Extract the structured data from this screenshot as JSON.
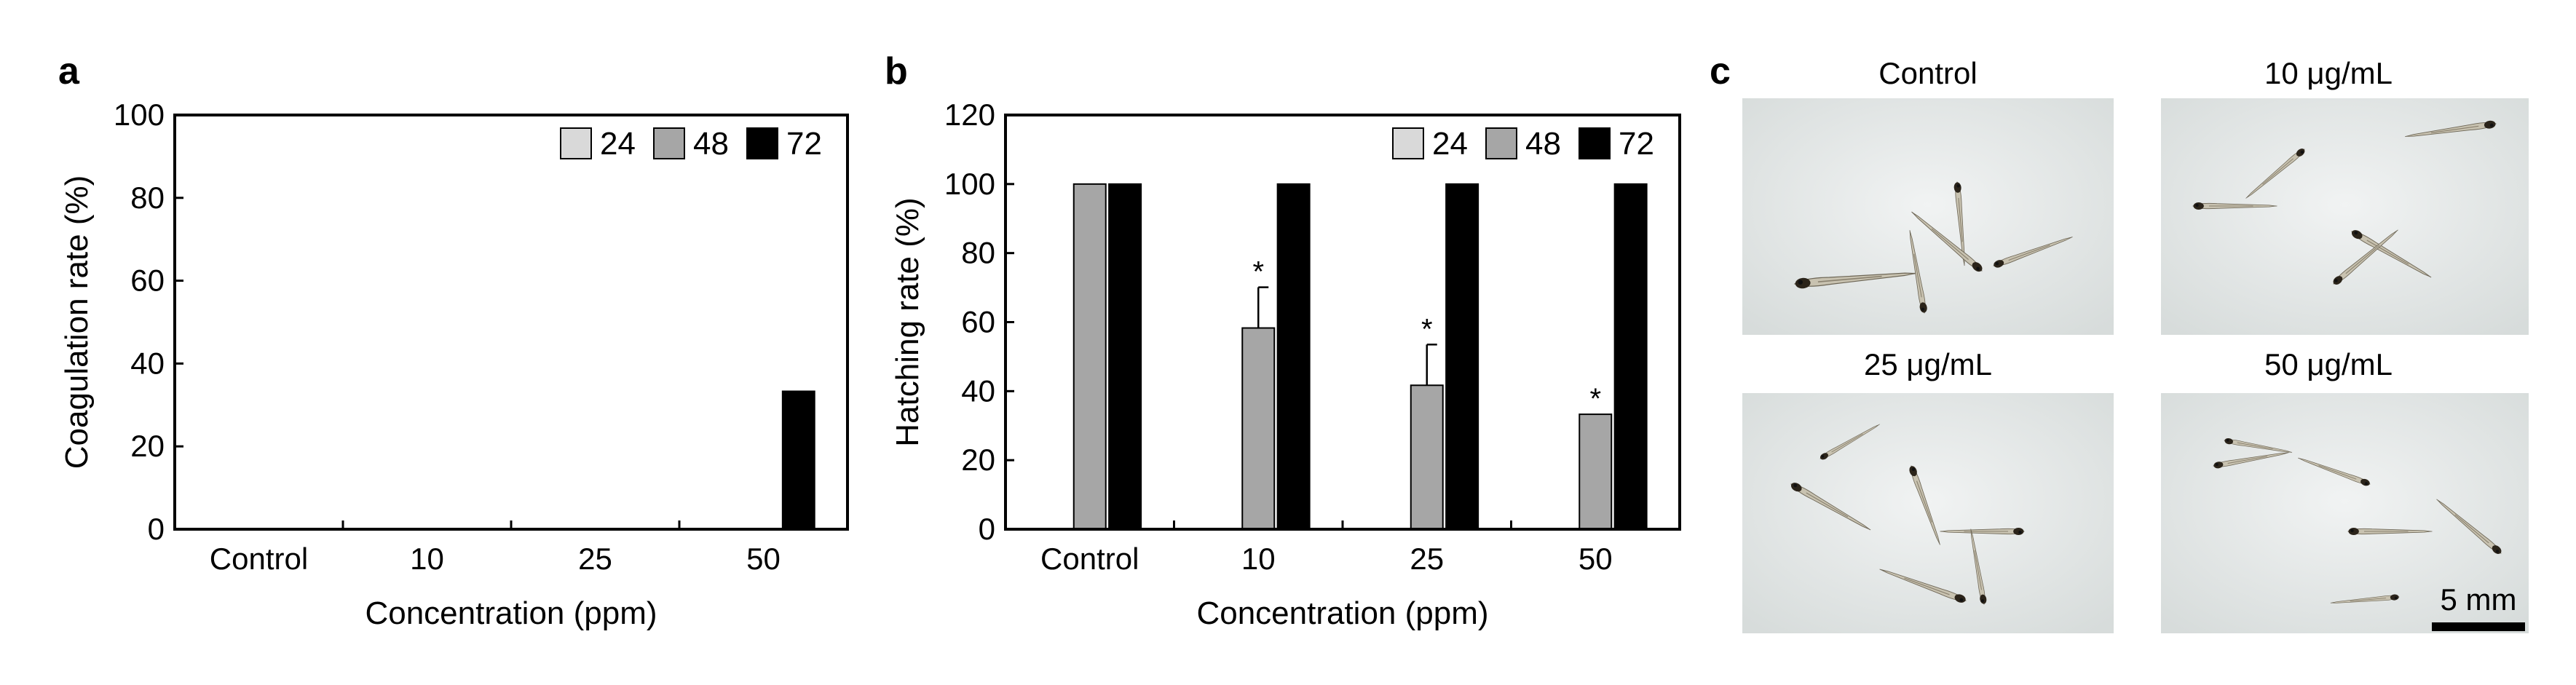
{
  "panel_letters": {
    "a": "a",
    "b": "b",
    "c": "c"
  },
  "colors": {
    "h24": "#d9d9d9",
    "h48": "#a6a6a6",
    "h72": "#000000",
    "photo_bg": "#e6e9e8"
  },
  "chart_data": [
    {
      "type": "bar",
      "panel": "a",
      "title": "",
      "categories": [
        "Control",
        "10",
        "25",
        "50"
      ],
      "series": [
        {
          "name": "24",
          "values": [
            0,
            0,
            0,
            0
          ]
        },
        {
          "name": "48",
          "values": [
            0,
            0,
            0,
            0
          ]
        },
        {
          "name": "72",
          "values": [
            0,
            0,
            0,
            33.3
          ]
        }
      ],
      "errors": null,
      "significance": [],
      "xlabel": "Concentration (ppm)",
      "ylabel": "Coagulation rate (%)",
      "ylim": [
        0,
        100
      ],
      "yticks": [
        "0",
        "20",
        "40",
        "60",
        "80",
        "100"
      ],
      "legend_position": "top-right",
      "grid": false
    },
    {
      "type": "bar",
      "panel": "b",
      "title": "",
      "categories": [
        "Control",
        "10",
        "25",
        "50"
      ],
      "series": [
        {
          "name": "24",
          "values": [
            0,
            0,
            0,
            0
          ]
        },
        {
          "name": "48",
          "values": [
            100,
            58.3,
            41.7,
            33.3
          ]
        },
        {
          "name": "72",
          "values": [
            100,
            100,
            100,
            100
          ]
        }
      ],
      "errors": {
        "48": [
          0,
          11.8,
          11.8,
          0
        ]
      },
      "significance": [
        {
          "category": "10",
          "series": "48",
          "mark": "*"
        },
        {
          "category": "25",
          "series": "48",
          "mark": "*"
        },
        {
          "category": "50",
          "series": "48",
          "mark": "*"
        }
      ],
      "xlabel": "Concentration (ppm)",
      "ylabel": "Hatching rate (%)",
      "ylim": [
        0,
        120
      ],
      "yticks": [
        "0",
        "20",
        "40",
        "60",
        "80",
        "100",
        "120"
      ],
      "legend_position": "top-right",
      "grid": false
    }
  ],
  "images": {
    "titles": [
      "Control",
      "10 μg/mL",
      "25 μg/mL",
      "50 μg/mL"
    ],
    "scale_bar_label": "5 mm"
  }
}
